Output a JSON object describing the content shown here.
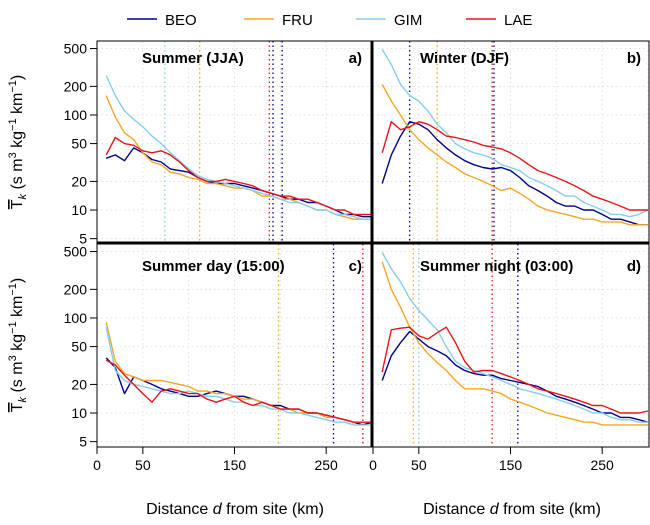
{
  "legend": [
    {
      "name": "BEO",
      "color": "#00008B"
    },
    {
      "name": "FRU",
      "color": "#F5A623"
    },
    {
      "name": "GIM",
      "color": "#87CEEB"
    },
    {
      "name": "LAE",
      "color": "#E8141C"
    }
  ],
  "axes": {
    "xlabel_prefix": "Distance ",
    "xlabel_var": "d",
    "xlabel_suffix": " from site (km)",
    "ylabel_T": "T",
    "ylabel_sub": "k",
    "ylabel_open": " (s m",
    "ylabel_exp3": "3",
    "ylabel_kg": " kg",
    "ylabel_expm1a": "−1",
    "ylabel_km": " km",
    "ylabel_expm1b": "−1",
    "ylabel_close": ")",
    "x_ticks": [
      "0",
      "50",
      "150",
      "250"
    ],
    "y_ticks": [
      "5",
      "10",
      "20",
      "50",
      "100",
      "200",
      "500"
    ]
  },
  "chart_data": [
    {
      "type": "line",
      "title": "Summer (JJA)",
      "letter": "a)",
      "xlim": [
        0,
        300
      ],
      "ylim": [
        4.5,
        600
      ],
      "yscale": "log",
      "grid": true,
      "x": [
        10,
        20,
        30,
        40,
        50,
        60,
        70,
        80,
        90,
        100,
        110,
        120,
        130,
        140,
        150,
        160,
        170,
        180,
        190,
        200,
        210,
        220,
        230,
        240,
        250,
        260,
        270,
        280,
        290,
        300
      ],
      "series": [
        {
          "name": "BEO",
          "values": [
            35,
            38,
            33,
            45,
            40,
            34,
            32,
            27,
            26,
            25,
            22,
            20,
            19,
            19,
            19,
            18,
            17,
            16,
            15,
            14,
            13,
            13,
            12,
            12,
            11,
            10,
            9,
            9,
            8.5,
            8.5
          ]
        },
        {
          "name": "FRU",
          "values": [
            160,
            95,
            65,
            55,
            40,
            32,
            30,
            25,
            24,
            22,
            21,
            19,
            19,
            18,
            17,
            17,
            16,
            14,
            14,
            13,
            13,
            12,
            11,
            10,
            10,
            9,
            8.5,
            8,
            8,
            8
          ]
        },
        {
          "name": "GIM",
          "values": [
            260,
            160,
            110,
            90,
            75,
            60,
            50,
            40,
            33,
            27,
            23,
            21,
            20,
            19,
            18,
            17,
            16,
            15,
            14,
            13,
            12,
            12,
            11,
            10,
            10,
            9,
            9,
            8.5,
            8,
            8
          ]
        },
        {
          "name": "LAE",
          "values": [
            38,
            58,
            50,
            48,
            42,
            40,
            42,
            38,
            32,
            26,
            22,
            20,
            20,
            21,
            20,
            19,
            18,
            16,
            15,
            14,
            14,
            13,
            13,
            12,
            11,
            10,
            10,
            9,
            9,
            9
          ]
        }
      ],
      "vlines": [
        {
          "series": "GIM",
          "x": 74
        },
        {
          "series": "FRU",
          "x": 112
        },
        {
          "series": "LAE",
          "x": 188
        },
        {
          "series": "BEO",
          "x": 192
        },
        {
          "series": "BEO",
          "x": 202
        }
      ]
    },
    {
      "type": "line",
      "title": "Winter (DJF)",
      "letter": "b)",
      "xlim": [
        0,
        300
      ],
      "ylim": [
        4.5,
        600
      ],
      "yscale": "log",
      "grid": true,
      "x": [
        10,
        20,
        30,
        40,
        50,
        60,
        70,
        80,
        90,
        100,
        110,
        120,
        130,
        140,
        150,
        160,
        170,
        180,
        190,
        200,
        210,
        220,
        230,
        240,
        250,
        260,
        270,
        280,
        290,
        300
      ],
      "series": [
        {
          "name": "BEO",
          "values": [
            19,
            38,
            60,
            85,
            80,
            70,
            55,
            45,
            38,
            33,
            30,
            28,
            27,
            28,
            26,
            22,
            18,
            16,
            14,
            12,
            11,
            11,
            10,
            10,
            9,
            8,
            8,
            7.5,
            7,
            7
          ]
        },
        {
          "name": "FRU",
          "values": [
            210,
            140,
            100,
            70,
            55,
            45,
            38,
            32,
            28,
            24,
            22,
            20,
            18,
            16,
            17,
            15,
            13,
            11,
            10,
            9.5,
            9,
            8.5,
            8,
            8,
            7.5,
            7.5,
            7.5,
            7,
            7,
            7
          ]
        },
        {
          "name": "GIM",
          "values": [
            490,
            340,
            210,
            160,
            140,
            110,
            80,
            65,
            50,
            44,
            40,
            38,
            35,
            30,
            28,
            26,
            22,
            20,
            18,
            16,
            14,
            14,
            12,
            11,
            10,
            9,
            9,
            8.5,
            9,
            10
          ]
        },
        {
          "name": "LAE",
          "values": [
            40,
            85,
            70,
            75,
            85,
            80,
            70,
            60,
            58,
            55,
            52,
            48,
            46,
            44,
            40,
            35,
            30,
            26,
            24,
            22,
            20,
            18,
            16,
            14,
            13,
            12,
            11,
            10,
            10,
            10
          ]
        }
      ],
      "vlines": [
        {
          "series": "BEO",
          "x": 40
        },
        {
          "series": "FRU",
          "x": 70
        },
        {
          "series": "LAE",
          "x": 130
        },
        {
          "series": "BEO",
          "x": 132
        }
      ]
    },
    {
      "type": "line",
      "title": "Summer day (15:00)",
      "letter": "c)",
      "xlim": [
        0,
        300
      ],
      "ylim": [
        4.5,
        600
      ],
      "yscale": "log",
      "grid": true,
      "x": [
        10,
        20,
        30,
        40,
        50,
        60,
        70,
        80,
        90,
        100,
        110,
        120,
        130,
        140,
        150,
        160,
        170,
        180,
        190,
        200,
        210,
        220,
        230,
        240,
        250,
        260,
        270,
        280,
        290,
        300
      ],
      "series": [
        {
          "name": "BEO",
          "values": [
            38,
            30,
            16,
            24,
            22,
            20,
            18,
            17,
            16,
            15,
            15,
            16,
            17,
            16,
            15,
            15,
            14,
            13,
            12,
            12,
            11,
            11,
            10,
            10,
            9.5,
            9,
            8.5,
            8,
            7.5,
            8
          ]
        },
        {
          "name": "FRU",
          "values": [
            90,
            35,
            26,
            24,
            22,
            22,
            22,
            21,
            20,
            19,
            17,
            17,
            16,
            16,
            15,
            14,
            14,
            13,
            12,
            11,
            11,
            10,
            10,
            10,
            9,
            9,
            8.5,
            8,
            8,
            8
          ]
        },
        {
          "name": "GIM",
          "values": [
            80,
            28,
            22,
            20,
            19,
            18,
            17,
            16,
            16,
            17,
            16,
            15,
            15,
            14,
            13,
            13,
            12,
            12,
            11,
            11,
            10,
            10,
            9.5,
            9,
            8.5,
            8,
            8,
            7.5,
            7.5,
            7.5
          ]
        },
        {
          "name": "LAE",
          "values": [
            36,
            32,
            25,
            20,
            16,
            13,
            17,
            18,
            17,
            16,
            16,
            14,
            13,
            14,
            15,
            13,
            12,
            13,
            12,
            11,
            11,
            11,
            10,
            10,
            9.5,
            9,
            8.5,
            8,
            8,
            8
          ]
        }
      ],
      "vlines": [
        {
          "series": "FRU",
          "x": 198
        },
        {
          "series": "BEO",
          "x": 258
        },
        {
          "series": "LAE",
          "x": 290
        }
      ]
    },
    {
      "type": "line",
      "title": "Summer night (03:00)",
      "letter": "d)",
      "xlim": [
        0,
        300
      ],
      "ylim": [
        4.5,
        600
      ],
      "yscale": "log",
      "grid": true,
      "x": [
        10,
        20,
        30,
        40,
        50,
        60,
        70,
        80,
        90,
        100,
        110,
        120,
        130,
        140,
        150,
        160,
        170,
        180,
        190,
        200,
        210,
        220,
        230,
        240,
        250,
        260,
        270,
        280,
        290,
        300
      ],
      "series": [
        {
          "name": "BEO",
          "values": [
            22,
            40,
            55,
            72,
            60,
            50,
            45,
            40,
            32,
            28,
            26,
            25,
            25,
            23,
            22,
            21,
            20,
            19,
            17,
            15,
            14,
            13,
            12,
            11,
            10,
            10,
            9,
            9,
            8.5,
            8
          ]
        },
        {
          "name": "FRU",
          "values": [
            390,
            200,
            130,
            80,
            55,
            42,
            34,
            28,
            22,
            18,
            18,
            18,
            17,
            16,
            14,
            13,
            12,
            11,
            10,
            9.5,
            9,
            8.5,
            8,
            8,
            7.5,
            7.5,
            7.5,
            7.5,
            7.5,
            7.5
          ]
        },
        {
          "name": "GIM",
          "values": [
            490,
            330,
            240,
            160,
            120,
            95,
            75,
            50,
            35,
            30,
            28,
            26,
            24,
            22,
            20,
            18,
            17,
            16,
            15,
            14,
            13,
            12,
            11,
            10,
            10,
            9,
            8.5,
            8.5,
            8,
            8
          ]
        },
        {
          "name": "LAE",
          "values": [
            27,
            75,
            78,
            80,
            65,
            60,
            70,
            80,
            55,
            35,
            27,
            28,
            28,
            26,
            24,
            22,
            20,
            18,
            17,
            16,
            15,
            14,
            13,
            12,
            12,
            11,
            10,
            10,
            10,
            10.5
          ]
        }
      ],
      "vlines": [
        {
          "series": "FRU",
          "x": 44
        },
        {
          "series": "GIM",
          "x": 50
        },
        {
          "series": "LAE",
          "x": 130
        },
        {
          "series": "BEO",
          "x": 158
        }
      ]
    }
  ]
}
